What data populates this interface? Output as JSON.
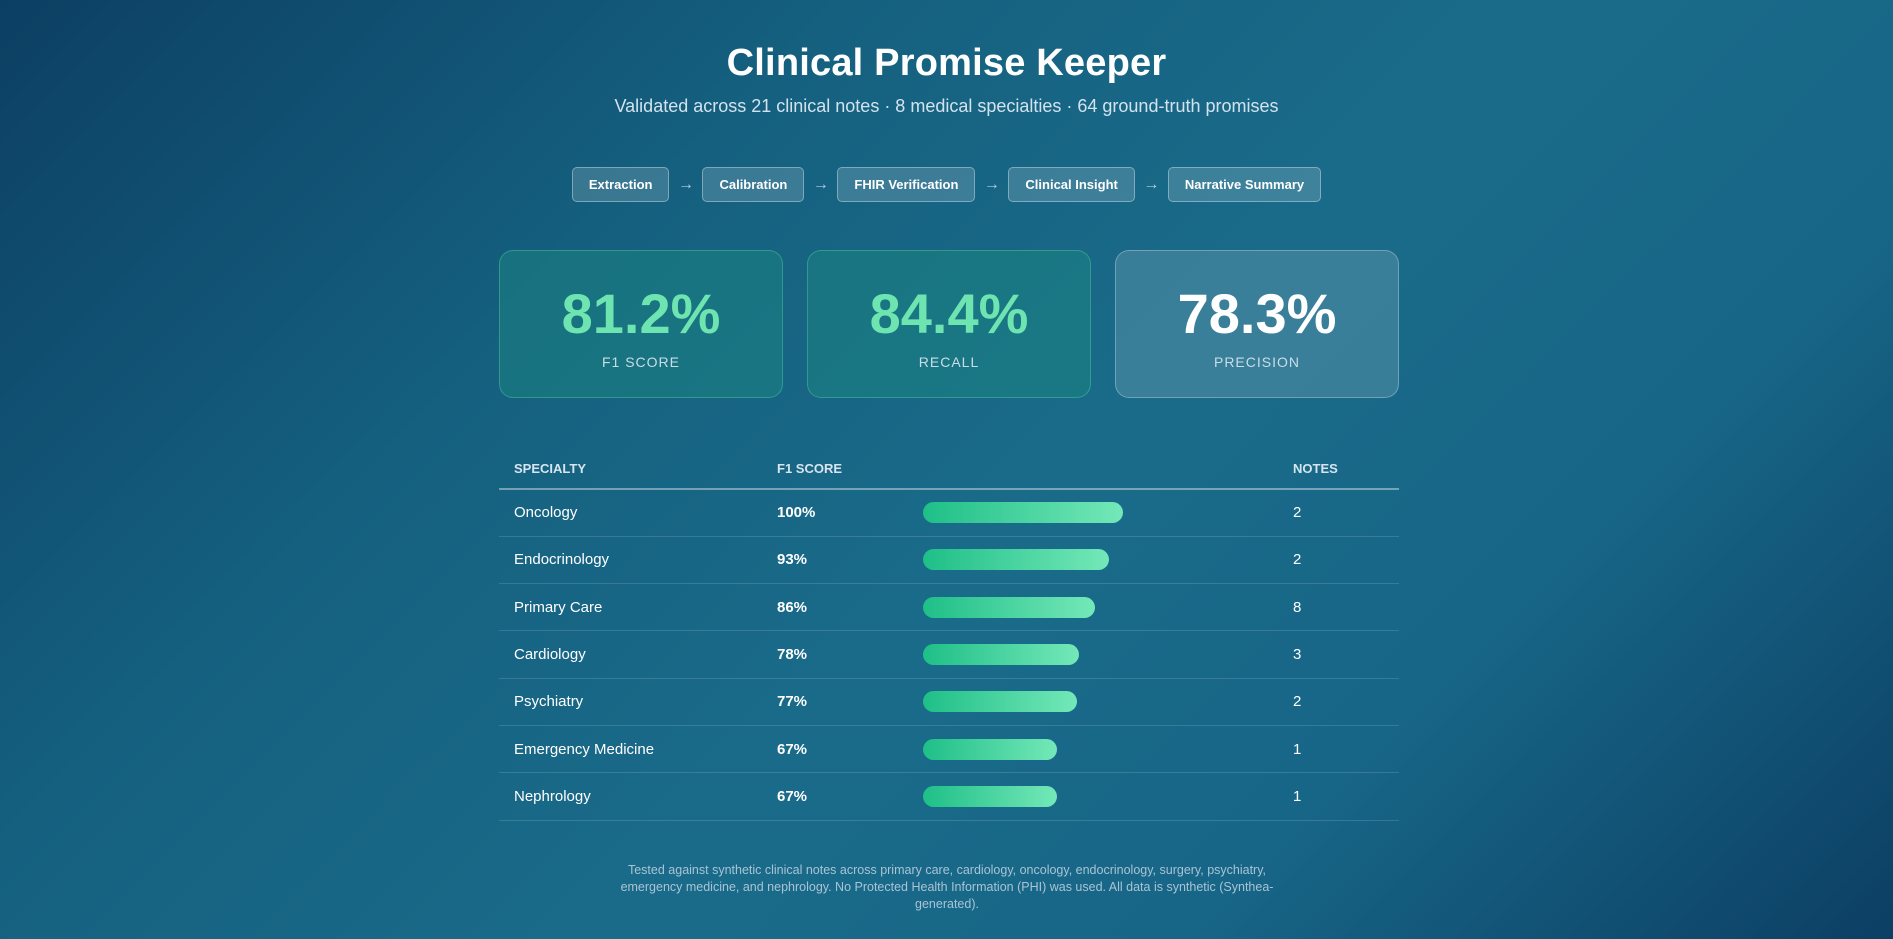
{
  "header": {
    "title": "Clinical Promise Keeper",
    "subtitle": "Validated across 21 clinical notes · 8 medical specialties · 64 ground-truth promises"
  },
  "pipeline": {
    "steps": [
      "Extraction",
      "Calibration",
      "FHIR Verification",
      "Clinical Insight",
      "Narrative Summary"
    ],
    "arrow": "→"
  },
  "metrics": [
    {
      "value": "81.2%",
      "label": "F1 SCORE"
    },
    {
      "value": "84.4%",
      "label": "RECALL"
    },
    {
      "value": "78.3%",
      "label": "PRECISION"
    }
  ],
  "table": {
    "headers": {
      "specialty": "SPECIALTY",
      "f1": "F1 SCORE",
      "notes": "NOTES"
    },
    "rows": [
      {
        "specialty": "Oncology",
        "f1": "100%",
        "fraction": 1.0,
        "notes": "2"
      },
      {
        "specialty": "Endocrinology",
        "f1": "93%",
        "fraction": 0.93,
        "notes": "2"
      },
      {
        "specialty": "Primary Care",
        "f1": "86%",
        "fraction": 0.86,
        "notes": "8"
      },
      {
        "specialty": "Cardiology",
        "f1": "78%",
        "fraction": 0.78,
        "notes": "3"
      },
      {
        "specialty": "Psychiatry",
        "f1": "77%",
        "fraction": 0.77,
        "notes": "2"
      },
      {
        "specialty": "Emergency Medicine",
        "f1": "67%",
        "fraction": 0.67,
        "notes": "1"
      },
      {
        "specialty": "Nephrology",
        "f1": "67%",
        "fraction": 0.67,
        "notes": "1"
      }
    ]
  },
  "footer": {
    "text": "Tested against synthetic clinical notes across primary care, cardiology, oncology, endocrinology, surgery, psychiatry, emergency medicine, and nephrology. No Protected Health Information (PHI) was used. All data is synthetic (Synthea-generated)."
  },
  "colors": {
    "accent_green": "#6ee4b0",
    "bar_start": "#1fbf88",
    "bar_end": "#74e8b8"
  }
}
